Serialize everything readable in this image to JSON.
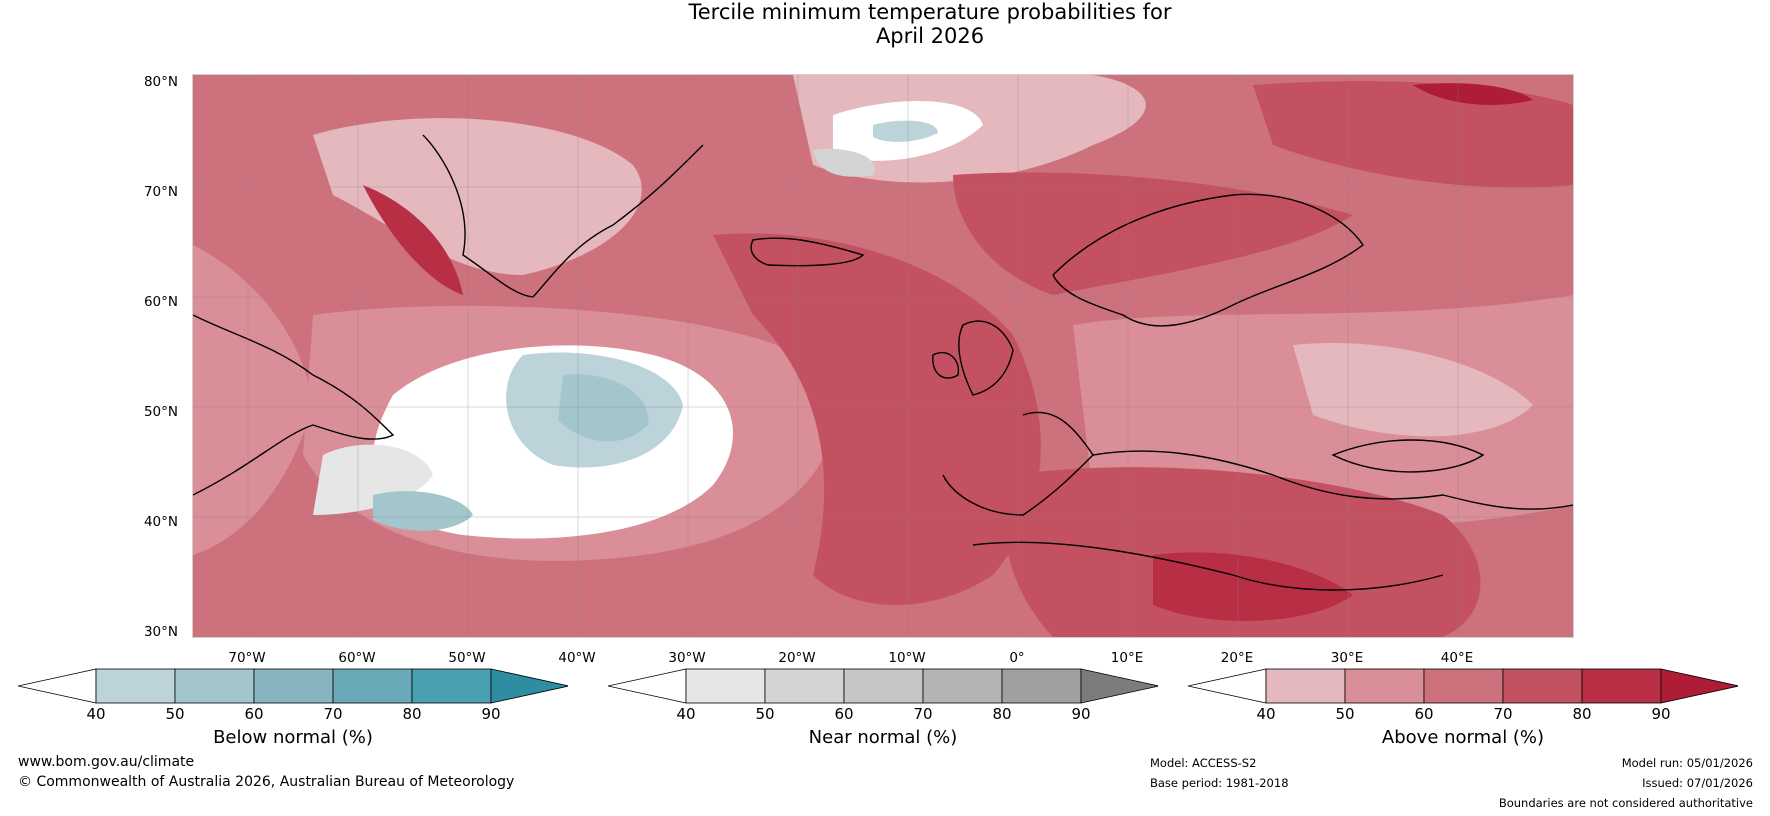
{
  "title": {
    "line1": "Tercile minimum temperature probabilities for",
    "line2": "April 2026"
  },
  "map": {
    "region": "North Atlantic and Europe",
    "projection": "equirectangular",
    "lat_range": [
      30,
      80
    ],
    "lon_range": [
      -80,
      45
    ],
    "lat_ticks": [
      "80°N",
      "70°N",
      "60°N",
      "50°N",
      "40°N",
      "30°N"
    ],
    "lon_ticks": [
      "70°W",
      "60°W",
      "50°W",
      "40°W",
      "30°W",
      "20°W",
      "10°W",
      "0°",
      "10°E",
      "20°E",
      "30°E",
      "40°E"
    ]
  },
  "colorbars": [
    {
      "label": "Below normal (%)",
      "ticks": [
        "40",
        "50",
        "60",
        "70",
        "80",
        "90"
      ],
      "colors": [
        "#ffffff",
        "#bcd3da",
        "#a3c6cd",
        "#86b5c0",
        "#69a9b7",
        "#48a0b1",
        "#2e8da1"
      ]
    },
    {
      "label": "Near normal (%)",
      "ticks": [
        "40",
        "50",
        "60",
        "70",
        "80",
        "90"
      ],
      "colors": [
        "#ffffff",
        "#e6e6e6",
        "#d4d4d4",
        "#c6c6c6",
        "#b4b4b4",
        "#a0a0a0",
        "#7e7b7b"
      ]
    },
    {
      "label": "Above normal (%)",
      "ticks": [
        "40",
        "50",
        "60",
        "70",
        "80",
        "90"
      ],
      "colors": [
        "#ffffff",
        "#e5b8bd",
        "#d98e98",
        "#cd727d",
        "#c45162",
        "#b82f45",
        "#ae1c35"
      ]
    }
  ],
  "footer": {
    "website": "www.bom.gov.au/climate",
    "copyright": "© Commonwealth of Australia 2026, Australian Bureau of Meteorology",
    "model": "Model: ACCESS-S2",
    "base_period": "Base period: 1981-2018",
    "model_run": "Model run: 05/01/2026",
    "issued": "Issued: 07/01/2026",
    "disclaimer": "Boundaries are not considered authoritative"
  }
}
